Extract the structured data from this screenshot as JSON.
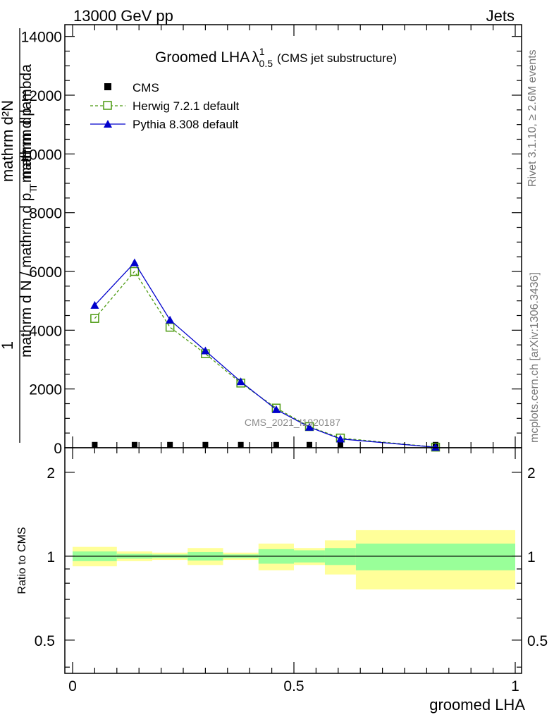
{
  "header": {
    "left": "13000 GeV pp",
    "right": "Jets"
  },
  "side_labels": {
    "rivet": "Rivet 3.1.10, ≥ 2.6M events",
    "mcplots": "mcplots.cern.ch [arXiv:1306.3436]"
  },
  "watermark": "CMS_2021_I1920187",
  "title": {
    "main": "Groomed LHA",
    "lambda": "λ",
    "sup": "1",
    "sub": "0.5",
    "suffix": "(CMS jet substructure)"
  },
  "ylabel": {
    "fraction_one": "1",
    "numerator": "mathrm d²N",
    "denominator": "mathrm d N / mathrm d p",
    "denominator_rest": " mathrm d p",
    "denominator_sub": "T",
    "denominator_rest2": " mathrm d lambda",
    "denominator_sub2": "T"
  },
  "ratio_ylabel": "Ratio to CMS",
  "chart_data": {
    "type": "line",
    "xlabel": "groomed LHA",
    "xlim": [
      0,
      1
    ],
    "x_ticks": [
      0,
      0.5,
      1
    ],
    "x_tick_labels": [
      "0",
      "0.5",
      "1"
    ],
    "main": {
      "ylim": [
        0,
        14400
      ],
      "y_ticks": [
        0,
        2000,
        4000,
        6000,
        8000,
        10000,
        12000,
        14000
      ],
      "y_tick_labels": [
        "0",
        "2000",
        "4000",
        "6000",
        "8000",
        "10000",
        "12000",
        "14000"
      ]
    },
    "ratio": {
      "ylim": [
        0.38,
        2.45
      ],
      "log": true,
      "y_ticks": [
        0.5,
        1,
        2
      ],
      "y_tick_labels": [
        "0.5",
        "1",
        "2"
      ]
    },
    "bins": [
      [
        0.0,
        0.1
      ],
      [
        0.1,
        0.18
      ],
      [
        0.18,
        0.26
      ],
      [
        0.26,
        0.34
      ],
      [
        0.34,
        0.42
      ],
      [
        0.42,
        0.5
      ],
      [
        0.5,
        0.57
      ],
      [
        0.57,
        0.64
      ],
      [
        0.64,
        1.0
      ]
    ],
    "legend": [
      "CMS",
      "Herwig 7.2.1 default",
      "Pythia 8.308 default"
    ],
    "series": [
      {
        "name": "CMS",
        "marker": "square-filled",
        "color": "#000000",
        "x": [
          0.05,
          0.14,
          0.22,
          0.3,
          0.38,
          0.46,
          0.535,
          0.605,
          0.82
        ],
        "y": [
          5,
          5,
          5,
          5,
          5,
          5,
          5,
          5,
          5
        ]
      },
      {
        "name": "Herwig 7.2.1 default",
        "marker": "square-open",
        "color": "#4c9a10",
        "dash": true,
        "x": [
          0.05,
          0.14,
          0.22,
          0.3,
          0.38,
          0.46,
          0.535,
          0.605,
          0.82
        ],
        "y": [
          4400,
          6000,
          4100,
          3200,
          2200,
          1350,
          720,
          330,
          20
        ]
      },
      {
        "name": "Pythia 8.308 default",
        "marker": "triangle-filled",
        "color": "#0000cc",
        "x": [
          0.05,
          0.14,
          0.22,
          0.3,
          0.38,
          0.46,
          0.535,
          0.605,
          0.82
        ],
        "y": [
          4850,
          6300,
          4350,
          3300,
          2250,
          1300,
          700,
          300,
          15
        ]
      }
    ],
    "ratio_bands": {
      "stat_color": "#99ff99",
      "total_color": "#ffff99",
      "stat_lo": [
        0.96,
        0.98,
        0.985,
        0.965,
        0.985,
        0.94,
        0.95,
        0.93,
        0.89
      ],
      "stat_hi": [
        1.04,
        1.02,
        1.015,
        1.035,
        1.015,
        1.06,
        1.05,
        1.07,
        1.11
      ],
      "total_lo": [
        0.92,
        0.96,
        0.97,
        0.93,
        0.97,
        0.89,
        0.93,
        0.86,
        0.76
      ],
      "total_hi": [
        1.08,
        1.04,
        1.03,
        1.07,
        1.03,
        1.11,
        1.07,
        1.14,
        1.24
      ]
    }
  }
}
